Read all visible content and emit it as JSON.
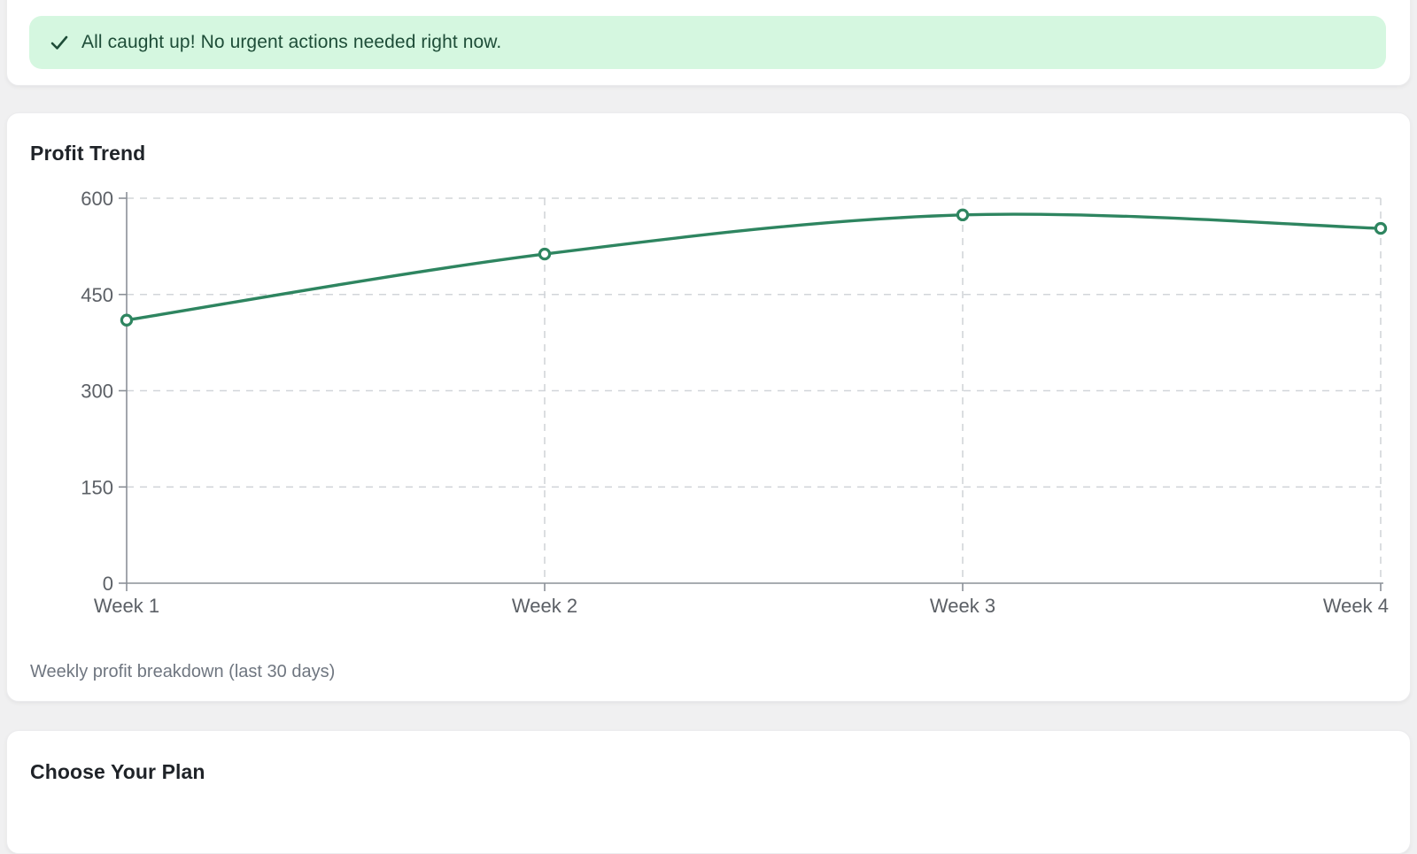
{
  "banner": {
    "message": "All caught up! No urgent actions needed right now.",
    "icon": "check-icon",
    "bg_color": "#d5f7e0",
    "text_color": "#1e4d38"
  },
  "chart_card": {
    "title": "Profit Trend",
    "caption": "Weekly profit breakdown (last 30 days)"
  },
  "plan_card": {
    "title": "Choose Your Plan"
  },
  "chart_data": {
    "type": "line",
    "title": "Profit Trend",
    "categories": [
      "Week 1",
      "Week 2",
      "Week 3",
      "Week 4"
    ],
    "values": [
      410,
      513,
      574,
      553
    ],
    "xlabel": "",
    "ylabel": "",
    "ylim": [
      0,
      600
    ],
    "yticks": [
      0,
      150,
      300,
      450,
      600
    ],
    "grid": true,
    "smooth": true,
    "legend": "none",
    "line_color": "#2e8560",
    "marker": "open-circle",
    "marker_fill": "#ffffff"
  }
}
